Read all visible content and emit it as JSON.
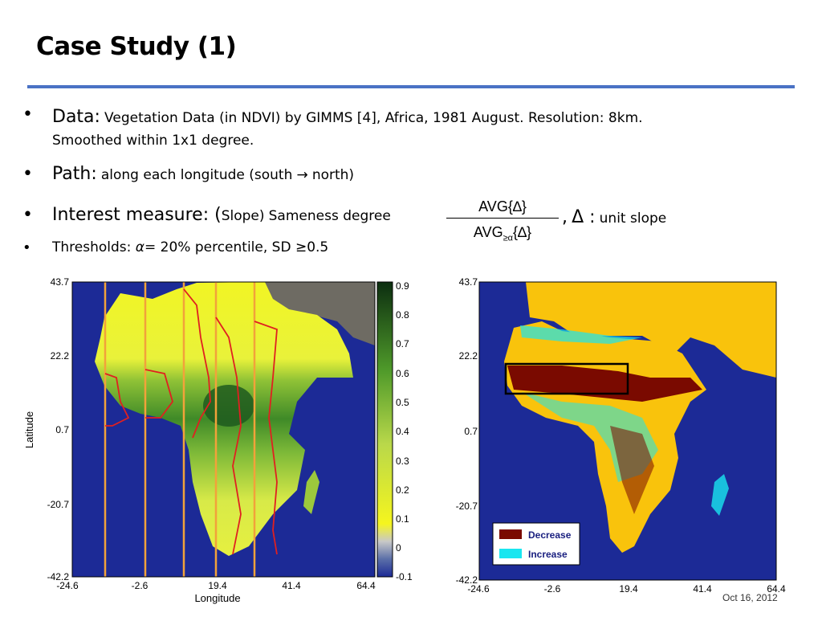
{
  "slide": {
    "title": "Case Study (1)",
    "bullets": {
      "data": {
        "label": "Data:",
        "text_line1": "Vegetation Data (in NDVI) by GIMMS [4], Africa, 1981 August. Resolution: 8km.",
        "text_line2": "Smoothed within 1x1 degree."
      },
      "path": {
        "label": "Path:",
        "text_pre": "along each longitude (south",
        "arrow": "→",
        "text_post": "north)"
      },
      "interest": {
        "label": "Interest measure: (",
        "slope": "Slope)",
        "sameness": "Sameness degree",
        "numerator": "AVG{∆}",
        "denominator": "AVG",
        "denominator_sub": "≥α",
        "denominator_tail": "{∆}",
        "comma": ",",
        "delta": "Δ :",
        "unit": "unit slope"
      },
      "thresholds": {
        "label": "Thresholds:",
        "alpha": "α",
        "text": "= 20% percentile, SD ≥0.5"
      }
    },
    "footer_date": "Oct 16, 2012"
  },
  "left_map": {
    "ylabel": "Latitude",
    "xlabel": "Longitude",
    "yticks": [
      "43.7",
      "22.2",
      "0.7",
      "-20.7",
      "-42.2"
    ],
    "xticks": [
      "-24.6",
      "-2.6",
      "19.4",
      "41.4",
      "64.4"
    ]
  },
  "colorbar": {
    "ticks": [
      "0.9",
      "0.8",
      "0.7",
      "0.6",
      "0.5",
      "0.4",
      "0.3",
      "0.2",
      "0.1",
      "0",
      "-0.1"
    ]
  },
  "right_map": {
    "yticks": [
      "43.7",
      "22.2",
      "0.7",
      "-20.7",
      "-42.2"
    ],
    "xticks": [
      "-24.6",
      "-2.6",
      "19.4",
      "41.4",
      "64.4"
    ],
    "legend": [
      {
        "label": "Decrease",
        "color": "#7a0a00"
      },
      {
        "label": "Increase",
        "color": "#19e6f0"
      }
    ]
  },
  "colors": {
    "ocean": "#1c2a96",
    "land_gray": "#6e6b63",
    "sahara_yellow": "#f5f51e",
    "veg_green": "#4f9a2a",
    "dark_green": "#1f5a1f",
    "land_orange": "#f9c30c",
    "rule_blue": "#4a72c4",
    "path_orange": "#f2a23a",
    "path_red": "#e02020"
  }
}
